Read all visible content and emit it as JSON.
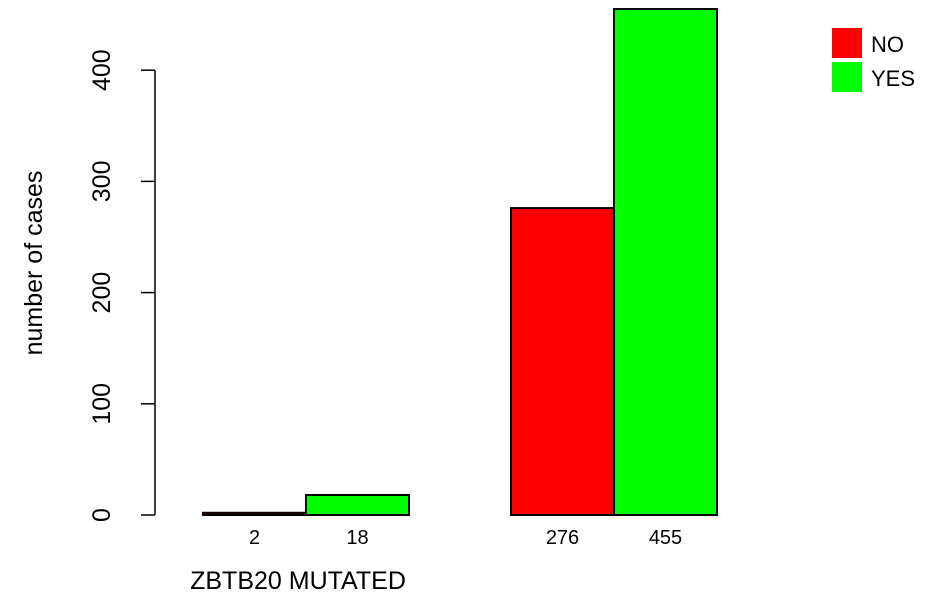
{
  "chart_data": {
    "type": "bar",
    "title": "",
    "xlabel": "ZBTB20 MUTATED",
    "ylabel": "number of cases",
    "ylim": [
      0,
      455
    ],
    "yticks": [
      0,
      100,
      200,
      300,
      400
    ],
    "grid": false,
    "legend_position": "top-right",
    "groups": [
      {
        "bars": [
          {
            "series": "NO",
            "value": 2,
            "label": "2"
          },
          {
            "series": "YES",
            "value": 18,
            "label": "18"
          }
        ]
      },
      {
        "bars": [
          {
            "series": "NO",
            "value": 276,
            "label": "276"
          },
          {
            "series": "YES",
            "value": 455,
            "label": "455"
          }
        ]
      }
    ],
    "series": [
      {
        "name": "NO",
        "color": "#ff0000"
      },
      {
        "name": "YES",
        "color": "#00ff00"
      }
    ]
  }
}
